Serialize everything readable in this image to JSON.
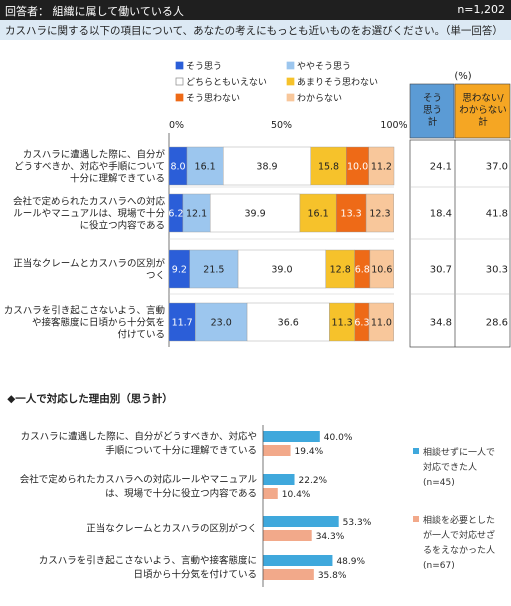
{
  "header": {
    "left": "回答者： 組織に属して働いている人",
    "right": "n=1,202"
  },
  "question": "カスハラに関する以下の項目について、あなたの考えにもっとも近いものをお選びください。（単一回答）",
  "percent_unit": "(%)",
  "chart_data": [
    {
      "type": "bar",
      "stacked": true,
      "orientation": "horizontal",
      "xlim": [
        0,
        100
      ],
      "x_ticks": [
        "0%",
        "50%",
        "100%"
      ],
      "legend": [
        "そう思う",
        "ややそう思う",
        "どちらともいえない",
        "あまりそう思わない",
        "そう思わない",
        "わからない"
      ],
      "colors": [
        "#2b5ed8",
        "#9cc6ee",
        "#ffffff",
        "#f6c22b",
        "#ee6a17",
        "#f8c79b"
      ],
      "categories": [
        [
          "カスハラに遭遇した際に、自分が",
          "どうすべきか、対応や手順について",
          "十分に理解できている"
        ],
        [
          "会社で定められたカスハラへの対応",
          "ルールやマニュアルは、現場で十分",
          "に役立つ内容である"
        ],
        [
          "正当なクレームとカスハラの区別が",
          "つく"
        ],
        [
          "カスハラを引き起こさないよう、言動",
          "や接客態度に日頃から十分気を",
          "付けている"
        ]
      ],
      "values": [
        [
          8.0,
          16.1,
          38.9,
          15.8,
          10.0,
          11.2
        ],
        [
          6.2,
          12.1,
          39.9,
          16.1,
          13.3,
          12.3
        ],
        [
          9.2,
          21.5,
          39.0,
          12.8,
          6.8,
          10.6
        ],
        [
          11.7,
          23.0,
          36.6,
          11.3,
          6.3,
          11.0
        ]
      ],
      "summary_headers": [
        [
          "そう",
          "思う",
          "計"
        ],
        [
          "思わない/",
          "わからない",
          "計"
        ]
      ],
      "summary": [
        [
          "24.1",
          "37.0"
        ],
        [
          "18.4",
          "41.8"
        ],
        [
          "30.7",
          "30.3"
        ],
        [
          "34.8",
          "28.6"
        ]
      ]
    },
    {
      "type": "bar",
      "orientation": "horizontal",
      "title": "◆一人で対応した理由別（思う計）",
      "categories": [
        [
          "カスハラに遭遇した際に、自分がどうすべきか、対応や",
          "手順について十分に理解できている"
        ],
        [
          "会社で定められたカスハラへの対応ルールやマニュアル",
          "は、現場で十分に役立つ内容である"
        ],
        [
          "正当なクレームとカスハラの区別がつく"
        ],
        [
          "カスハラを引き起こさないよう、言動や接客態度に",
          "日頃から十分気を付けている"
        ]
      ],
      "series": [
        {
          "name": [
            "相談せずに一人で",
            "対応できた人",
            "(n=45)"
          ],
          "values": [
            40.0,
            22.2,
            53.3,
            48.9
          ],
          "labels": [
            "40.0%",
            "22.2%",
            "53.3%",
            "48.9%"
          ],
          "color": "#3fa8dc"
        },
        {
          "name": [
            "相談を必要とした",
            "が一人で対応せざ",
            "るをえなかった人",
            "(n=67)"
          ],
          "values": [
            19.4,
            10.4,
            34.3,
            35.8
          ],
          "labels": [
            "19.4%",
            "10.4%",
            "34.3%",
            "35.8%"
          ],
          "color": "#f2a98a"
        }
      ]
    }
  ]
}
